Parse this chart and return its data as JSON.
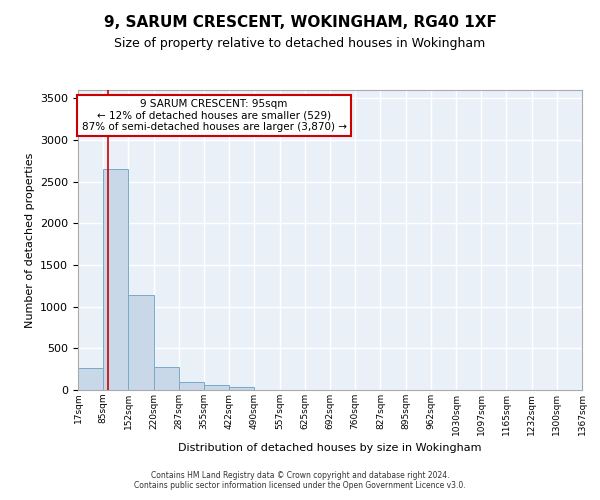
{
  "title": "9, SARUM CRESCENT, WOKINGHAM, RG40 1XF",
  "subtitle": "Size of property relative to detached houses in Wokingham",
  "xlabel": "Distribution of detached houses by size in Wokingham",
  "ylabel": "Number of detached properties",
  "bar_color": "#c8d8e8",
  "bar_edge_color": "#7aaac8",
  "background_color": "#eaf0f8",
  "grid_color": "#ffffff",
  "bin_edges": [
    "17sqm",
    "85sqm",
    "152sqm",
    "220sqm",
    "287sqm",
    "355sqm",
    "422sqm",
    "490sqm",
    "557sqm",
    "625sqm",
    "692sqm",
    "760sqm",
    "827sqm",
    "895sqm",
    "962sqm",
    "1030sqm",
    "1097sqm",
    "1165sqm",
    "1232sqm",
    "1300sqm",
    "1367sqm"
  ],
  "bar_values": [
    270,
    2650,
    1140,
    280,
    95,
    55,
    35,
    0,
    0,
    0,
    0,
    0,
    0,
    0,
    0,
    0,
    0,
    0,
    0,
    0
  ],
  "red_line_x": 1.18,
  "annotation_text": "9 SARUM CRESCENT: 95sqm\n← 12% of detached houses are smaller (529)\n87% of semi-detached houses are larger (3,870) →",
  "annotation_box_color": "#ffffff",
  "annotation_border_color": "#cc0000",
  "ylim": [
    0,
    3600
  ],
  "yticks": [
    0,
    500,
    1000,
    1500,
    2000,
    2500,
    3000,
    3500
  ],
  "footer_line1": "Contains HM Land Registry data © Crown copyright and database right 2024.",
  "footer_line2": "Contains public sector information licensed under the Open Government Licence v3.0."
}
